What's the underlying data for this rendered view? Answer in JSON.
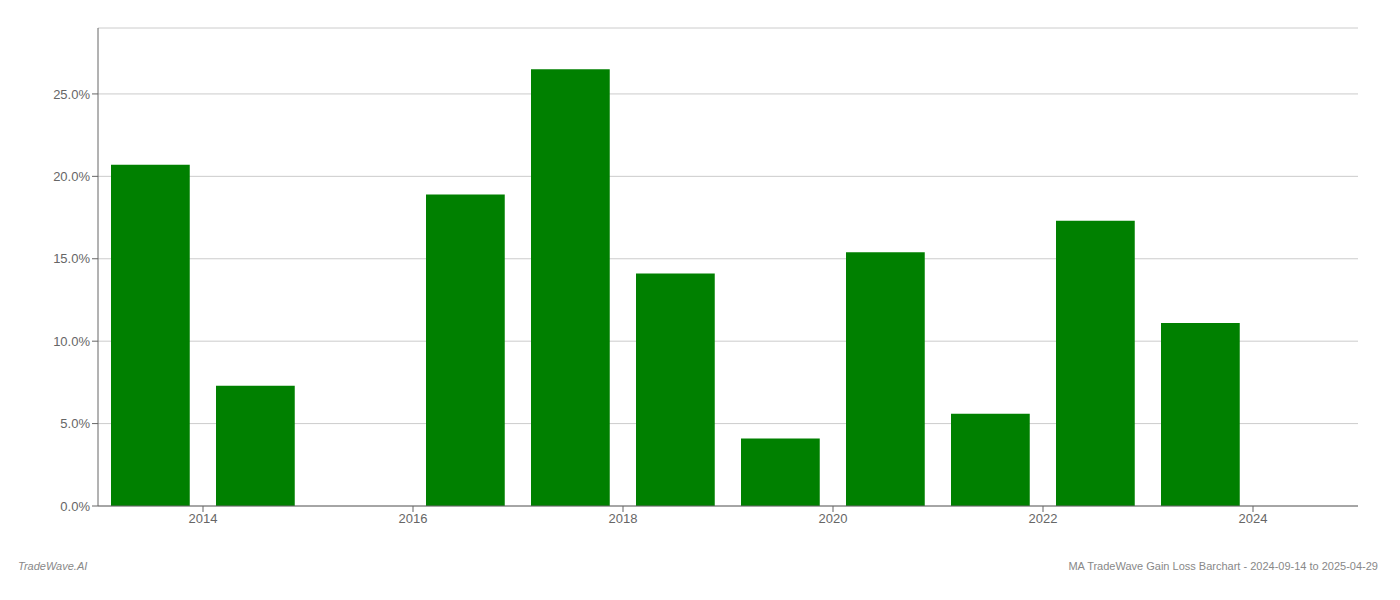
{
  "chart_data": {
    "type": "bar",
    "x": [
      2013.5,
      2014.5,
      2016.5,
      2017.5,
      2018.5,
      2019.5,
      2020.5,
      2021.5,
      2022.5,
      2023.5
    ],
    "values": [
      0.207,
      0.073,
      0.189,
      0.265,
      0.141,
      0.041,
      0.154,
      0.056,
      0.173,
      0.111
    ],
    "color": "#008000",
    "xlim": [
      2013.0,
      2025.0
    ],
    "ylim": [
      0,
      0.29
    ],
    "xticks": [
      2014,
      2016,
      2018,
      2020,
      2022,
      2024
    ],
    "yticks": [
      {
        "value": 0.0,
        "label": "0.0%"
      },
      {
        "value": 0.05,
        "label": "5.0%"
      },
      {
        "value": 0.1,
        "label": "10.0%"
      },
      {
        "value": 0.15,
        "label": "15.0%"
      },
      {
        "value": 0.2,
        "label": "20.0%"
      },
      {
        "value": 0.25,
        "label": "25.0%"
      }
    ],
    "grid": true,
    "annotations": [
      "TradeWave.AI",
      "MA TradeWave Gain Loss Barchart - 2024-09-14 to 2025-04-29"
    ]
  }
}
